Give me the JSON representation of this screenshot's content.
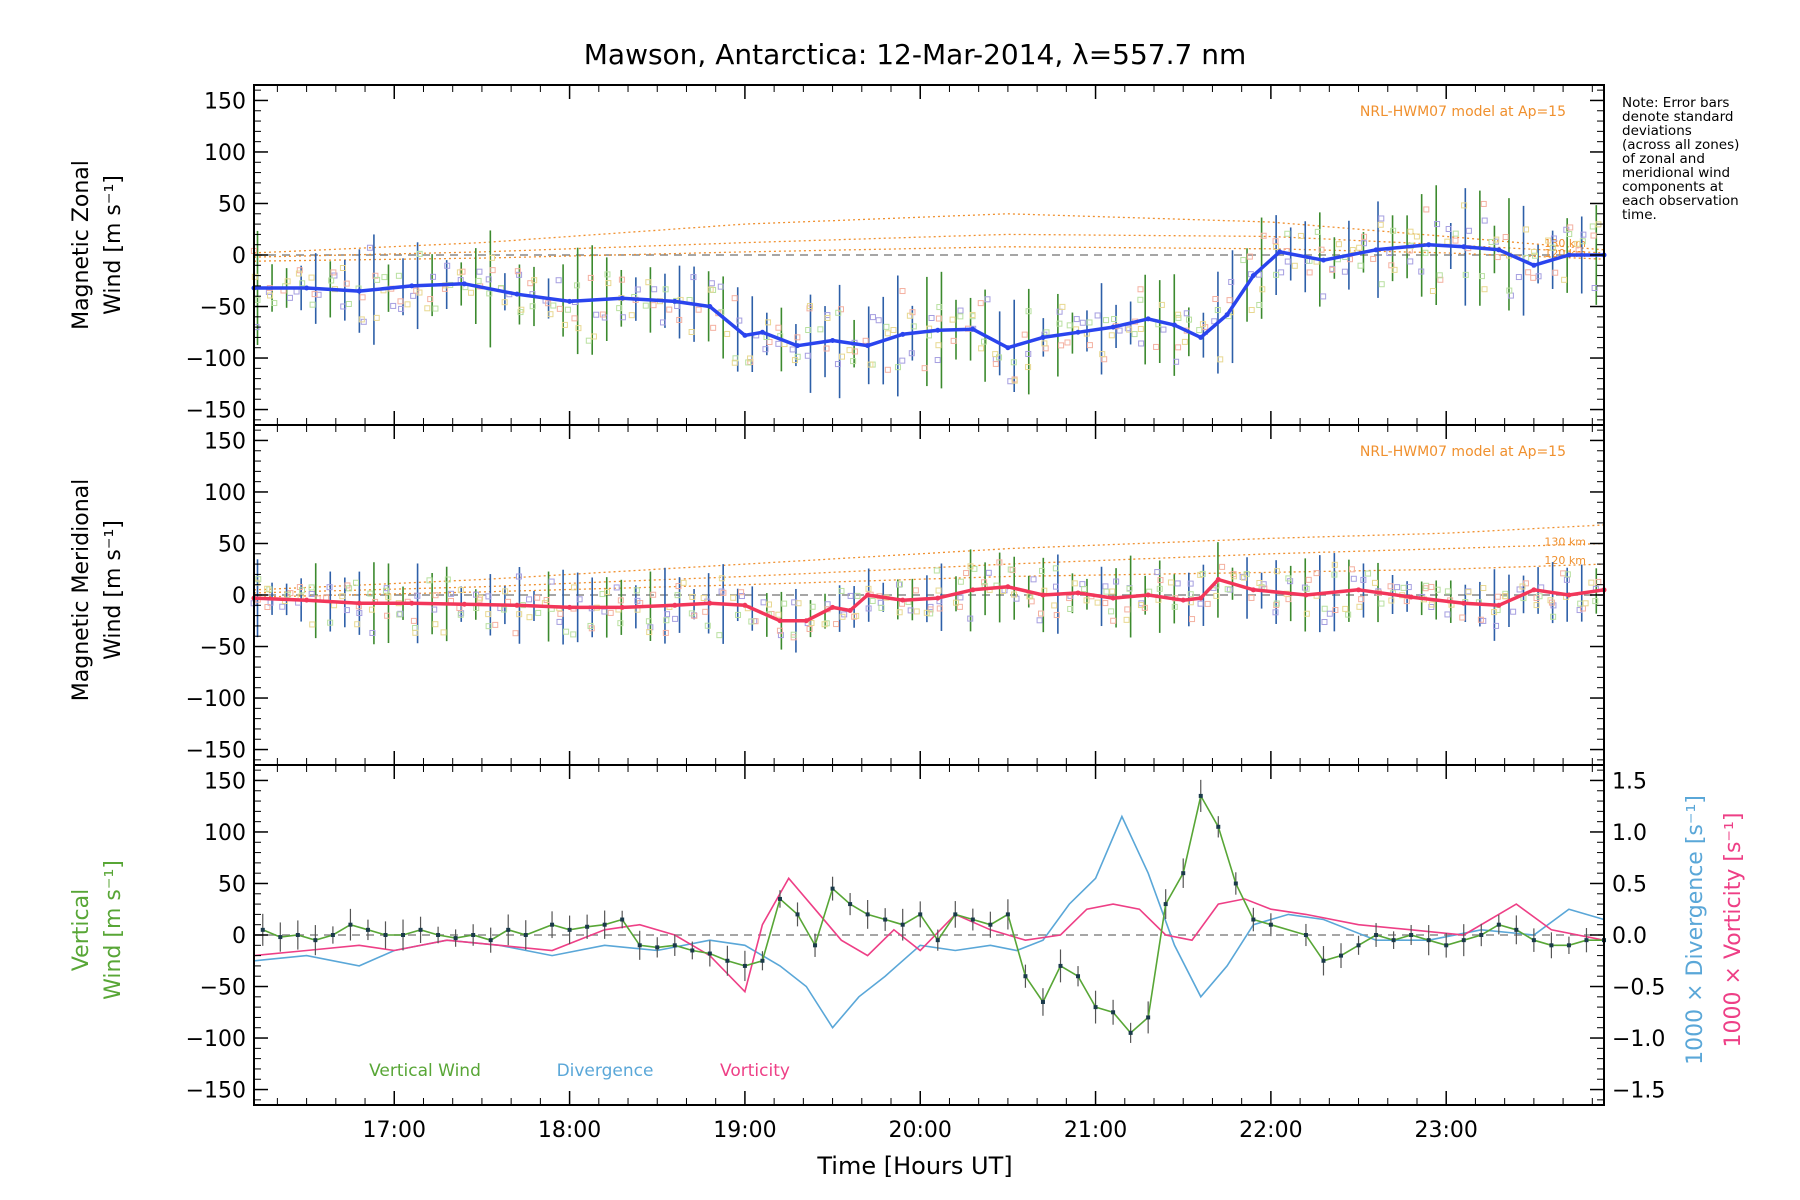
{
  "title": "Mawson, Antarctica: 12-Mar-2014, λ=557.7 nm",
  "note_lines": [
    "Note: Error bars",
    "denote standard",
    "deviations",
    "(across all zones)",
    "of zonal and",
    "meridional wind",
    "components at",
    "each observation",
    "time."
  ],
  "colors": {
    "zonal": "#2a44ee",
    "meridional": "#f2365a",
    "vertical": "#58a636",
    "divergence": "#5aa7d8",
    "vorticity": "#ee3f86",
    "model": "#f0902e",
    "scatter": "#a59ee0",
    "errorbar_green": "#3c8a2e",
    "errorbar_blue": "#2d5fa8"
  },
  "chart_data": [
    {
      "type": "line",
      "panel": "zonal",
      "ylabel": [
        "Magnetic Zonal",
        "Wind [m s⁻¹]"
      ],
      "ylim": [
        -165,
        165
      ],
      "yticks": [
        150,
        100,
        50,
        0,
        -50,
        -100,
        -150
      ],
      "xlim": [
        16.2,
        23.9
      ],
      "model_label": "NRL-HWM07 model at Ap=15",
      "model_alt_labels": [
        "130 km",
        "120 km"
      ],
      "series": [
        {
          "x": [
            16.2,
            16.5,
            16.8,
            17.1,
            17.4,
            17.7,
            18.0,
            18.3,
            18.6,
            18.8,
            19.0,
            19.1,
            19.3,
            19.5,
            19.7,
            19.9,
            20.1,
            20.3,
            20.5,
            20.7,
            20.9,
            21.1,
            21.3,
            21.45,
            21.6,
            21.75,
            21.9,
            22.05,
            22.3,
            22.6,
            22.9,
            23.1,
            23.3,
            23.5,
            23.7,
            23.9
          ],
          "y": [
            -32,
            -32,
            -35,
            -30,
            -28,
            -38,
            -45,
            -42,
            -45,
            -50,
            -78,
            -75,
            -88,
            -83,
            -88,
            -77,
            -73,
            -72,
            -90,
            -80,
            -75,
            -70,
            -62,
            -68,
            -80,
            -58,
            -20,
            3,
            -5,
            5,
            10,
            8,
            5,
            -10,
            0,
            0
          ]
        }
      ],
      "model_curves": [
        {
          "x": [
            16.2,
            17.5,
            19.0,
            20.5,
            22.0,
            23.0,
            23.9
          ],
          "y": [
            2,
            12,
            30,
            40,
            32,
            18,
            5
          ]
        },
        {
          "x": [
            16.2,
            17.5,
            19.0,
            20.5,
            22.0,
            23.0,
            23.9
          ],
          "y": [
            -2,
            3,
            12,
            20,
            18,
            10,
            2
          ]
        },
        {
          "x": [
            16.2,
            17.5,
            19.0,
            20.5,
            22.0,
            23.0,
            23.9
          ],
          "y": [
            -6,
            -3,
            3,
            8,
            6,
            2,
            -4
          ]
        }
      ]
    },
    {
      "type": "line",
      "panel": "meridional",
      "ylabel": [
        "Magnetic Meridional",
        "Wind [m s⁻¹]"
      ],
      "ylim": [
        -165,
        165
      ],
      "yticks": [
        150,
        100,
        50,
        0,
        -50,
        -100,
        -150
      ],
      "xlim": [
        16.2,
        23.9
      ],
      "model_label": "NRL-HWM07 model at Ap=15",
      "model_alt_labels": [
        "130 km",
        "120 km"
      ],
      "series": [
        {
          "x": [
            16.2,
            16.5,
            16.8,
            17.1,
            17.4,
            17.7,
            18.0,
            18.3,
            18.6,
            18.8,
            19.0,
            19.2,
            19.35,
            19.5,
            19.6,
            19.7,
            19.9,
            20.1,
            20.3,
            20.5,
            20.7,
            20.9,
            21.1,
            21.3,
            21.5,
            21.6,
            21.7,
            21.9,
            22.2,
            22.5,
            22.8,
            23.1,
            23.3,
            23.5,
            23.7,
            23.9
          ],
          "y": [
            -3,
            -5,
            -8,
            -8,
            -9,
            -10,
            -12,
            -12,
            -10,
            -8,
            -10,
            -25,
            -25,
            -12,
            -15,
            0,
            -5,
            -3,
            5,
            8,
            0,
            2,
            -3,
            0,
            -5,
            -3,
            15,
            5,
            0,
            5,
            -2,
            -8,
            -10,
            5,
            0,
            5
          ]
        }
      ],
      "model_curves": [
        {
          "x": [
            16.2,
            17.5,
            19.0,
            20.5,
            22.0,
            23.0,
            23.9
          ],
          "y": [
            5,
            15,
            30,
            45,
            55,
            60,
            68
          ]
        },
        {
          "x": [
            16.2,
            17.5,
            19.0,
            20.5,
            22.0,
            23.0,
            23.9
          ],
          "y": [
            2,
            8,
            18,
            30,
            40,
            45,
            50
          ]
        },
        {
          "x": [
            16.2,
            17.5,
            19.0,
            20.5,
            22.0,
            23.0,
            23.9
          ],
          "y": [
            -2,
            3,
            10,
            18,
            22,
            25,
            30
          ]
        }
      ]
    },
    {
      "type": "line",
      "panel": "vertical",
      "ylabel_left": [
        "Vertical",
        "Wind [m s⁻¹]"
      ],
      "ylabel_right": [
        "1000 × Divergence [s⁻¹]",
        "1000 × Vorticity [s⁻¹]"
      ],
      "ylim": [
        -165,
        165
      ],
      "yticks": [
        150,
        100,
        50,
        0,
        -50,
        -100,
        -150
      ],
      "ylim_right": [
        -1.65,
        1.65
      ],
      "yticks_right": [
        "1.5",
        "1.0",
        "0.5",
        "0.0",
        "−0.5",
        "−1.0",
        "−1.5"
      ],
      "xlim": [
        16.2,
        23.9
      ],
      "xticks": [
        "17:00",
        "18:00",
        "19:00",
        "20:00",
        "21:00",
        "22:00",
        "23:00"
      ],
      "xlabel": "Time [Hours UT]",
      "legend": [
        "Vertical Wind",
        "Divergence",
        "Vorticity"
      ],
      "series": [
        {
          "name": "Vertical Wind",
          "x": [
            16.25,
            16.35,
            16.45,
            16.55,
            16.65,
            16.75,
            16.85,
            16.95,
            17.05,
            17.15,
            17.25,
            17.35,
            17.45,
            17.55,
            17.65,
            17.75,
            17.9,
            18.0,
            18.1,
            18.2,
            18.3,
            18.4,
            18.5,
            18.6,
            18.7,
            18.8,
            18.9,
            19.0,
            19.1,
            19.2,
            19.3,
            19.4,
            19.5,
            19.6,
            19.7,
            19.8,
            19.9,
            20.0,
            20.1,
            20.2,
            20.3,
            20.4,
            20.5,
            20.6,
            20.7,
            20.8,
            20.9,
            21.0,
            21.1,
            21.2,
            21.3,
            21.4,
            21.5,
            21.6,
            21.7,
            21.8,
            21.9,
            22.0,
            22.2,
            22.3,
            22.4,
            22.5,
            22.6,
            22.7,
            22.8,
            22.9,
            23.0,
            23.1,
            23.2,
            23.3,
            23.4,
            23.5,
            23.6,
            23.7,
            23.8,
            23.9
          ],
          "y": [
            5,
            -2,
            0,
            -5,
            0,
            10,
            5,
            0,
            0,
            5,
            0,
            -3,
            0,
            -5,
            5,
            0,
            10,
            5,
            8,
            10,
            15,
            -10,
            -12,
            -10,
            -15,
            -18,
            -25,
            -30,
            -25,
            35,
            20,
            -10,
            45,
            30,
            20,
            15,
            10,
            20,
            -5,
            20,
            15,
            10,
            20,
            -40,
            -65,
            -30,
            -40,
            -70,
            -75,
            -95,
            -80,
            30,
            60,
            135,
            105,
            50,
            15,
            10,
            0,
            -25,
            -20,
            -10,
            0,
            -5,
            0,
            -5,
            -10,
            -5,
            0,
            10,
            5,
            -5,
            -10,
            -10,
            -5,
            -5
          ]
        },
        {
          "name": "Divergence",
          "axis": "right",
          "x": [
            16.2,
            16.5,
            16.8,
            17.0,
            17.3,
            17.6,
            17.9,
            18.2,
            18.5,
            18.8,
            19.0,
            19.2,
            19.35,
            19.5,
            19.65,
            19.8,
            20.0,
            20.2,
            20.4,
            20.55,
            20.7,
            20.85,
            21.0,
            21.15,
            21.3,
            21.45,
            21.6,
            21.75,
            21.9,
            22.1,
            22.3,
            22.6,
            22.9,
            23.2,
            23.5,
            23.7,
            23.9
          ],
          "y": [
            -0.25,
            -0.2,
            -0.3,
            -0.15,
            -0.05,
            -0.1,
            -0.2,
            -0.1,
            -0.15,
            -0.05,
            -0.1,
            -0.3,
            -0.5,
            -0.9,
            -0.6,
            -0.4,
            -0.1,
            -0.15,
            -0.1,
            -0.15,
            -0.05,
            0.3,
            0.55,
            1.15,
            0.6,
            -0.1,
            -0.6,
            -0.3,
            0.1,
            0.2,
            0.15,
            -0.05,
            -0.05,
            0.05,
            0.0,
            0.25,
            0.15
          ]
        },
        {
          "name": "Vorticity",
          "axis": "right",
          "x": [
            16.2,
            16.5,
            16.8,
            17.0,
            17.3,
            17.6,
            17.9,
            18.2,
            18.4,
            18.6,
            18.8,
            19.0,
            19.1,
            19.25,
            19.4,
            19.55,
            19.7,
            19.85,
            20.0,
            20.2,
            20.4,
            20.6,
            20.8,
            20.95,
            21.1,
            21.25,
            21.4,
            21.55,
            21.7,
            21.85,
            22.0,
            22.2,
            22.5,
            22.8,
            23.1,
            23.4,
            23.6,
            23.9
          ],
          "y": [
            -0.2,
            -0.15,
            -0.1,
            -0.15,
            -0.05,
            -0.1,
            -0.15,
            0.05,
            0.1,
            0.0,
            -0.2,
            -0.55,
            0.1,
            0.55,
            0.25,
            -0.05,
            -0.2,
            0.05,
            -0.15,
            0.2,
            0.05,
            -0.05,
            0.0,
            0.25,
            0.3,
            0.25,
            0.0,
            -0.05,
            0.3,
            0.35,
            0.25,
            0.2,
            0.1,
            0.05,
            0.0,
            0.3,
            0.05,
            -0.05
          ]
        }
      ]
    }
  ]
}
